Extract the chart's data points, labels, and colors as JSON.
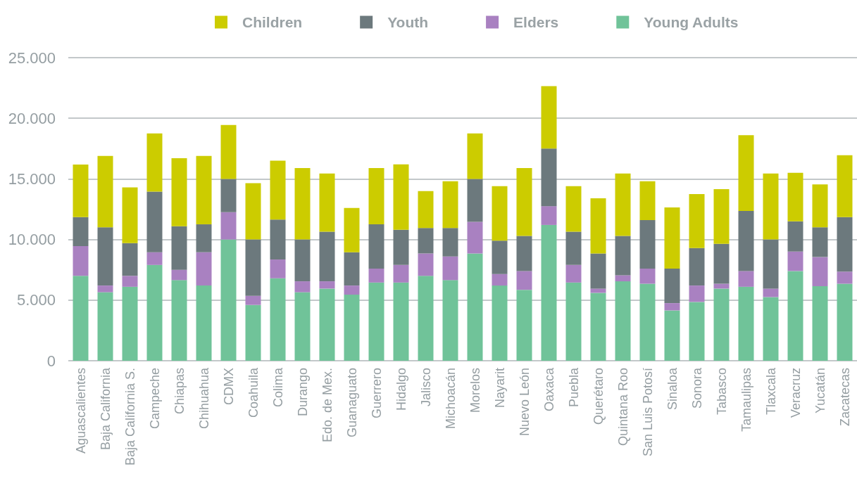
{
  "chart_data": {
    "type": "bar",
    "stacked": true,
    "categories": [
      "Aguascalientes",
      "Baja California",
      "Baja California S.",
      "Campeche",
      "Chiapas",
      "Chihuahua",
      "CDMX",
      "Coahuila",
      "Colima",
      "Durango",
      "Edo. de Mex.",
      "Guanaguato",
      "Guerrero",
      "Hidalgo",
      "Jalisco",
      "Michoacán",
      "Morelos",
      "Nayarit",
      "Nuevo León",
      "Oaxaca",
      "Puebla",
      "Querétaro",
      "Quintana Roo",
      "San Luis Potosí",
      "Sinaloa",
      "Sonora",
      "Tabasco",
      "Tamaulipas",
      "Tlaxcala",
      "Veracruz",
      "Yucatán",
      "Zacatecas"
    ],
    "series": [
      {
        "name": "Young Adults",
        "color": "#70c399",
        "values": [
          7000,
          5650,
          6100,
          7900,
          6650,
          6200,
          10000,
          4600,
          6800,
          5650,
          5950,
          5450,
          6450,
          6450,
          7000,
          6650,
          8850,
          6200,
          5850,
          11200,
          6450,
          5600,
          6550,
          6350,
          4150,
          4850,
          5950,
          6100,
          5250,
          7400,
          6150,
          6350
        ]
      },
      {
        "name": "Elders",
        "color": "#a981c1",
        "values": [
          2450,
          550,
          900,
          1050,
          850,
          2750,
          2250,
          750,
          1550,
          900,
          600,
          750,
          1150,
          1450,
          1850,
          1950,
          2600,
          950,
          1550,
          1550,
          1450,
          350,
          500,
          1250,
          600,
          1350,
          400,
          1300,
          700,
          1600,
          2400,
          1000
        ]
      },
      {
        "name": "Youth",
        "color": "#6c797d",
        "values": [
          2400,
          4800,
          2700,
          5000,
          3600,
          2300,
          2750,
          4650,
          3300,
          3450,
          4100,
          2750,
          3650,
          2900,
          2100,
          2350,
          3550,
          2750,
          2900,
          4750,
          2750,
          2900,
          3250,
          4000,
          2850,
          3100,
          3300,
          4950,
          4050,
          2500,
          2450,
          4500
        ]
      },
      {
        "name": "Children",
        "color": "#cccc00",
        "values": [
          4330,
          5900,
          4600,
          4800,
          5600,
          5650,
          4450,
          4650,
          4850,
          5900,
          4800,
          3650,
          4650,
          5400,
          3050,
          3850,
          3750,
          4500,
          5600,
          5150,
          3750,
          4550,
          5150,
          3200,
          5050,
          4450,
          4500,
          6250,
          5450,
          4000,
          3550,
          5100
        ]
      }
    ],
    "ylim": [
      0,
      25000
    ],
    "yticks": [
      {
        "value": 0,
        "label": "0"
      },
      {
        "value": 5000,
        "label": "5.000"
      },
      {
        "value": 10000,
        "label": "10.000"
      },
      {
        "value": 15000,
        "label": "15.000"
      },
      {
        "value": 20000,
        "label": "20.000"
      },
      {
        "value": 25000,
        "label": "25.000"
      }
    ],
    "grid": "y",
    "legend": "top"
  }
}
